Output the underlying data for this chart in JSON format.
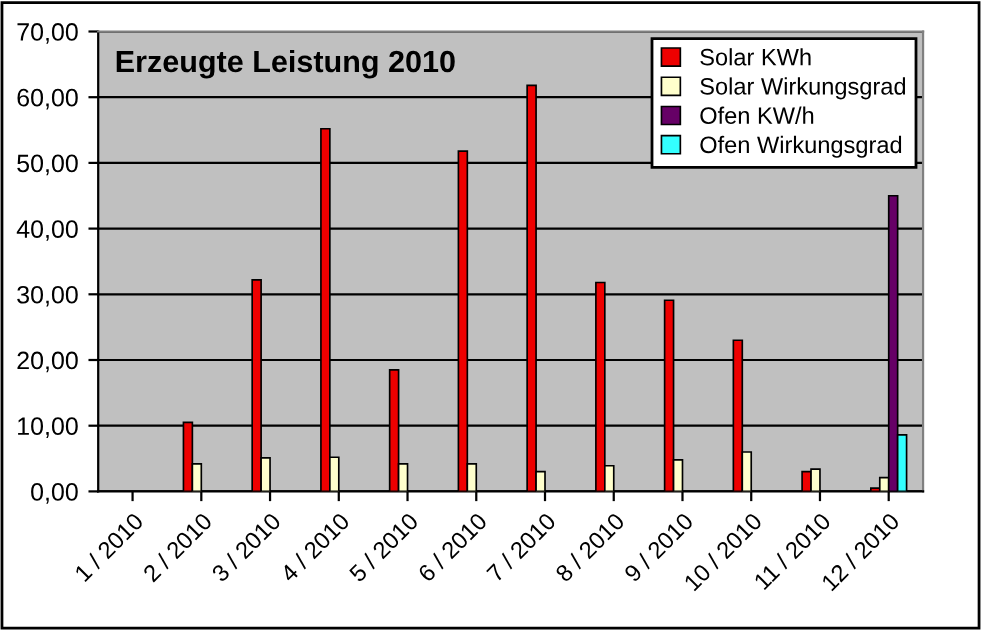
{
  "chart_data": {
    "type": "bar",
    "title": "Erzeugte Leistung 2010",
    "categories": [
      "1 / 2010",
      "2 / 2010",
      "3 / 2010",
      "4 / 2010",
      "5 / 2010",
      "6 / 2010",
      "7 / 2010",
      "8 / 2010",
      "9 / 2010",
      "10 / 2010",
      "11 / 2010",
      "12 / 2010"
    ],
    "series": [
      {
        "name": "Solar KWh",
        "color": "#ee0000",
        "values": [
          null,
          10.5,
          32.2,
          55.2,
          18.5,
          51.8,
          61.8,
          31.8,
          29.1,
          23.0,
          3.0,
          0.5
        ]
      },
      {
        "name": "Solar Wirkungsgrad",
        "color": "#ffffcc",
        "values": [
          null,
          4.2,
          5.1,
          5.2,
          4.2,
          4.2,
          3.0,
          3.9,
          4.8,
          6.0,
          3.4,
          2.1
        ]
      },
      {
        "name": "Ofen KW/h",
        "color": "#660066",
        "values": [
          null,
          null,
          null,
          null,
          null,
          null,
          null,
          null,
          null,
          null,
          null,
          45.0
        ]
      },
      {
        "name": "Ofen Wirkungsgrad",
        "color": "#33ffff",
        "values": [
          null,
          null,
          null,
          null,
          null,
          null,
          null,
          null,
          null,
          null,
          null,
          8.6
        ]
      }
    ],
    "ylim": [
      0,
      70
    ],
    "yticks": [
      {
        "value": 0,
        "label": "0,00"
      },
      {
        "value": 10,
        "label": "10,00"
      },
      {
        "value": 20,
        "label": "20,00"
      },
      {
        "value": 30,
        "label": "30,00"
      },
      {
        "value": 40,
        "label": "40,00"
      },
      {
        "value": 50,
        "label": "50,00"
      },
      {
        "value": 60,
        "label": "60,00"
      },
      {
        "value": 70,
        "label": "70,00"
      }
    ],
    "grid": "y",
    "legend": "top right"
  }
}
